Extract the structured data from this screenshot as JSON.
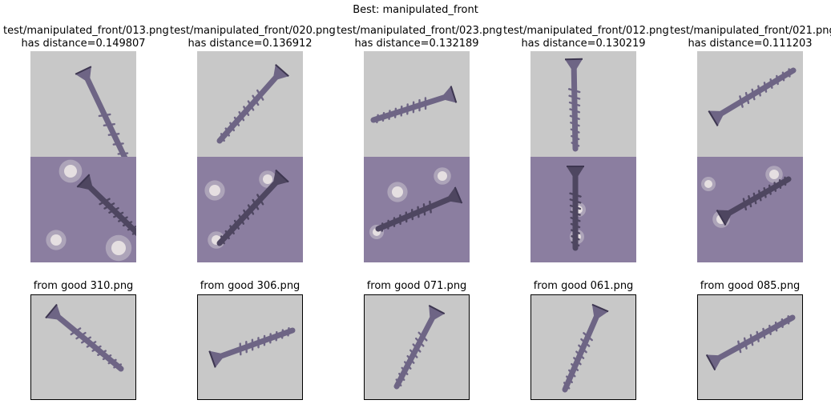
{
  "figure_title": "Best: manipulated_front",
  "colors": {
    "background_gray": "#c8c8c8",
    "screw_purple": "#6e6585",
    "overlay_purple": "#8b7ea0",
    "spot_white": "#efeae8"
  },
  "columns": [
    {
      "top_title_line1": "test/manipulated_front/013.png",
      "top_title_line2": "has distance=0.149807",
      "bottom_title": "from good 310.png"
    },
    {
      "top_title_line1": "test/manipulated_front/020.png",
      "top_title_line2": "has distance=0.136912",
      "bottom_title": "from good 306.png"
    },
    {
      "top_title_line1": "test/manipulated_front/023.png",
      "top_title_line2": "has distance=0.132189",
      "bottom_title": "from good 071.png"
    },
    {
      "top_title_line1": "test/manipulated_front/012.png",
      "top_title_line2": "has distance=0.130219",
      "bottom_title": "from good 061.png"
    },
    {
      "top_title_line1": "test/manipulated_front/021.png",
      "top_title_line2": "has distance=0.111203",
      "bottom_title": "from good 085.png"
    }
  ]
}
